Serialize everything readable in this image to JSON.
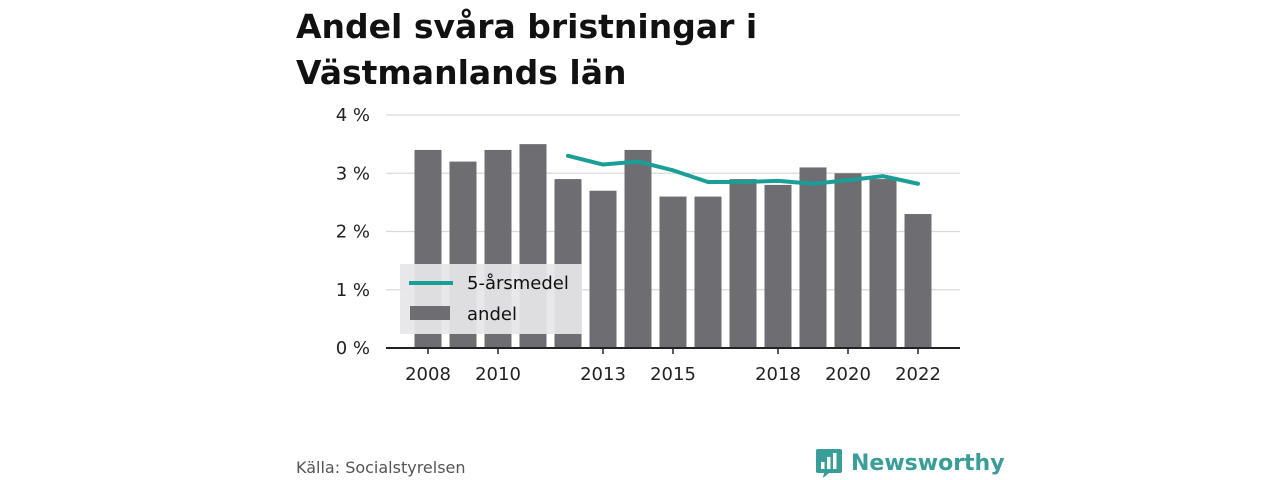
{
  "title_lines": [
    "Andel svåra bristningar i",
    "Västmanlands län"
  ],
  "source": "Källa: Socialstyrelsen",
  "brand": {
    "name": "Newsworthy",
    "icon": "bar-chart-speech-bubble-icon",
    "color": "#3a9e98"
  },
  "colors": {
    "bar": "#6e6d72",
    "line": "#1a9e96",
    "grid": "#d9d9d9",
    "axis": "#222222",
    "legend_bg": "#e6e6e8"
  },
  "chart_data": {
    "type": "bar",
    "title": "Andel svåra bristningar i Västmanlands län",
    "categories": [
      2008,
      2009,
      2010,
      2011,
      2012,
      2013,
      2014,
      2015,
      2016,
      2017,
      2018,
      2019,
      2020,
      2021,
      2022
    ],
    "x_tick_labels": [
      "2008",
      "2010",
      "2013",
      "2015",
      "2018",
      "2020",
      "2022"
    ],
    "y_tick_labels": [
      "0 %",
      "1 %",
      "2 %",
      "3 %",
      "4 %"
    ],
    "ylim": [
      0,
      4
    ],
    "grid": true,
    "legend_position": "lower-left",
    "series": [
      {
        "name": "andel",
        "type": "bar",
        "values": [
          3.4,
          3.2,
          3.4,
          3.5,
          2.9,
          2.7,
          3.4,
          2.6,
          2.6,
          2.9,
          2.8,
          3.1,
          3.0,
          2.9,
          2.3
        ]
      },
      {
        "name": "5-årsmedel",
        "type": "line",
        "values": [
          null,
          null,
          null,
          null,
          3.3,
          3.15,
          3.2,
          3.05,
          2.85,
          2.85,
          2.87,
          2.82,
          2.88,
          2.95,
          2.82
        ]
      }
    ]
  }
}
